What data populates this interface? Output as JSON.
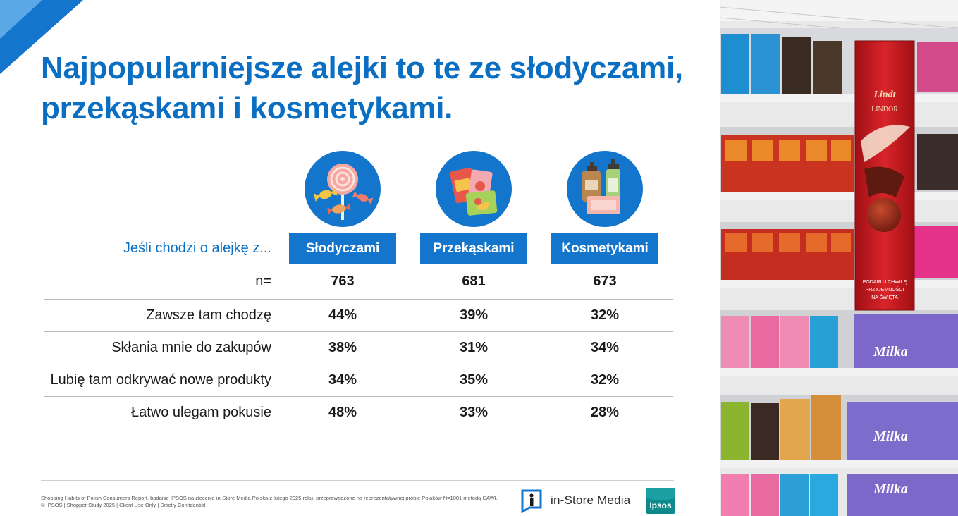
{
  "title": "Najpopularniejsze alejki to te ze słodyczami, przekąskami i kosmetykami.",
  "table": {
    "lead_label": "Jeśli chodzi o alejkę z...",
    "columns": [
      {
        "label": "Słodyczami",
        "icon": "candy-icon"
      },
      {
        "label": "Przekąskami",
        "icon": "snacks-icon"
      },
      {
        "label": "Kosmetykami",
        "icon": "cosmetics-icon"
      }
    ],
    "n_label": "n=",
    "n_values": [
      "763",
      "681",
      "673"
    ],
    "rows": [
      {
        "label": "Zawsze tam chodzę",
        "values": [
          "44%",
          "39%",
          "32%"
        ]
      },
      {
        "label": "Skłania mnie do zakupów",
        "values": [
          "38%",
          "31%",
          "34%"
        ]
      },
      {
        "label": "Lubię tam odkrywać nowe produkty",
        "values": [
          "34%",
          "35%",
          "32%"
        ]
      },
      {
        "label": "Łatwo ulegam pokusie",
        "values": [
          "48%",
          "33%",
          "28%"
        ]
      }
    ]
  },
  "footer": {
    "source": "Shopping Habits of Polish Consumers Report, badanie IPSOS na zlecenie in-Store Media Polska z lutego 2025 roku, przeprowadzone na reprezentatywnej próbie Polaków N=1001 metodą CAWI.",
    "copyright": "© IPSOS | Shopper Study 2025 | Client Use Only | Srtictly Confidential"
  },
  "logos": {
    "instore_text": "in-Store Media",
    "ipsos_text": "Ipsos"
  },
  "photo": {
    "banner_brand": "Lindt",
    "banner_product": "LINDOR",
    "banner_slogan": [
      "PODARUJ CHWILĘ",
      "PRZYJEMNOŚCI",
      "NA ŚWIĘTA"
    ],
    "shelf_label": "Milka"
  },
  "colors": {
    "accent": "#1475cd",
    "title": "#0a6fc2"
  }
}
